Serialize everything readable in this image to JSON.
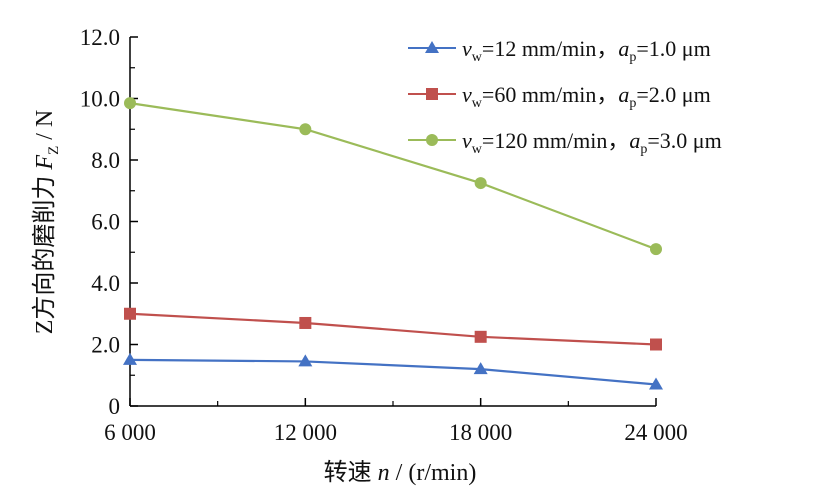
{
  "chart_data": {
    "type": "line",
    "xlabel": {
      "prefix": "转速 ",
      "var": "n",
      "suffix": " / (r/min)"
    },
    "ylabel": {
      "prefix": "Z方向的磨削力 ",
      "var": "F",
      "sub": "Z",
      "suffix": " / N"
    },
    "x": [
      6000,
      12000,
      18000,
      24000
    ],
    "x_ticks": [
      "6 000",
      "12 000",
      "18 000",
      "24 000"
    ],
    "y_ticks": [
      "0",
      "2.0",
      "4.0",
      "6.0",
      "8.0",
      "10.0",
      "12.0"
    ],
    "ylim": [
      0,
      12
    ],
    "xlim": [
      6000,
      24000
    ],
    "grid": false,
    "legend_position": "top-right",
    "series": [
      {
        "name": "v_w=12 mm/min，a_p=1.0 μm",
        "legend": {
          "vw": "12 mm/min，",
          "ap": "1.0 μm"
        },
        "marker": "triangle",
        "color": "#4472C4",
        "values": [
          1.5,
          1.45,
          1.2,
          0.7
        ]
      },
      {
        "name": "v_w=60 mm/min，a_p=2.0 μm",
        "legend": {
          "vw": "60 mm/min，",
          "ap": "2.0 μm"
        },
        "marker": "square",
        "color": "#C0504D",
        "values": [
          3.0,
          2.7,
          2.25,
          2.0
        ]
      },
      {
        "name": "v_w=120 mm/min，a_p=3.0 μm",
        "legend": {
          "vw": "120 mm/min，",
          "ap": "3.0 μm"
        },
        "marker": "circle",
        "color": "#9BBB59",
        "values": [
          9.85,
          9.0,
          7.25,
          5.1
        ]
      }
    ]
  }
}
